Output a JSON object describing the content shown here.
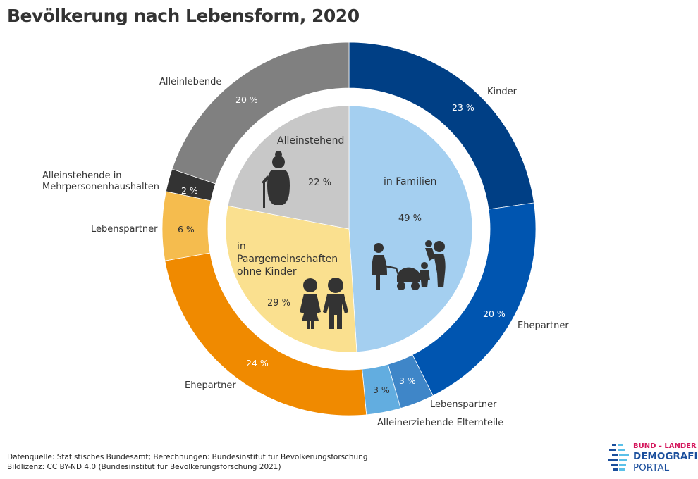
{
  "title": "Bevölkerung nach Lebensform, 2020",
  "chart_data": {
    "type": "pie",
    "title": "Bevölkerung nach Lebensform, 2020",
    "unit": "%",
    "inner": [
      {
        "label": "in Familien",
        "value": 49,
        "pct": "49 %",
        "color": "#a4cff0",
        "icon": "family-icon"
      },
      {
        "label": "in Paargemeinschaften ohne Kinder",
        "value": 29,
        "pct": "29 %",
        "color": "#fae08f",
        "icon": "couple-icon"
      },
      {
        "label": "Alleinstehend",
        "value": 22,
        "pct": "22 %",
        "color": "#c8c8c8",
        "icon": "elderly-woman-icon"
      }
    ],
    "outer": [
      {
        "label": "Kinder",
        "value": 23,
        "pct": "23 %",
        "color": "#003f85",
        "text_color": "#ffffff"
      },
      {
        "label": "Ehepartner",
        "value": 20,
        "pct": "20 %",
        "color": "#0055b0",
        "text_color": "#ffffff"
      },
      {
        "label": "Lebenspartner",
        "value": 3,
        "pct": "3 %",
        "color": "#3f86c8",
        "text_color": "#ffffff"
      },
      {
        "label": "Alleinerziehende Elternteile",
        "value": 3,
        "pct": "3 %",
        "color": "#62ade0",
        "text_color": "#333333"
      },
      {
        "label": "Ehepartner",
        "value": 24,
        "pct": "24 %",
        "color": "#f08a00",
        "text_color": "#ffffff"
      },
      {
        "label": "Lebenspartner",
        "value": 6,
        "pct": "6 %",
        "color": "#f5bc4e",
        "text_color": "#333333"
      },
      {
        "label": "Alleinstehende in Mehrpersonenhaushalten",
        "value": 2,
        "pct": "2 %",
        "color": "#333333",
        "text_color": "#ffffff"
      },
      {
        "label": "Alleinlebende",
        "value": 20,
        "pct": "20 %",
        "color": "#808080",
        "text_color": "#ffffff"
      }
    ]
  },
  "footer": {
    "source": "Datenquelle: Statistisches Bundesamt; Berechnungen: Bundesinstitut für Bevölkerungsforschung",
    "license": "Bildlizenz: CC BY-ND 4.0 (Bundesinstitut für Bevölkerungsforschung 2021)"
  },
  "logo": {
    "line1": "BUND – LÄNDER",
    "line2": "DEMOGRAFIE",
    "line3": "PORTAL"
  }
}
